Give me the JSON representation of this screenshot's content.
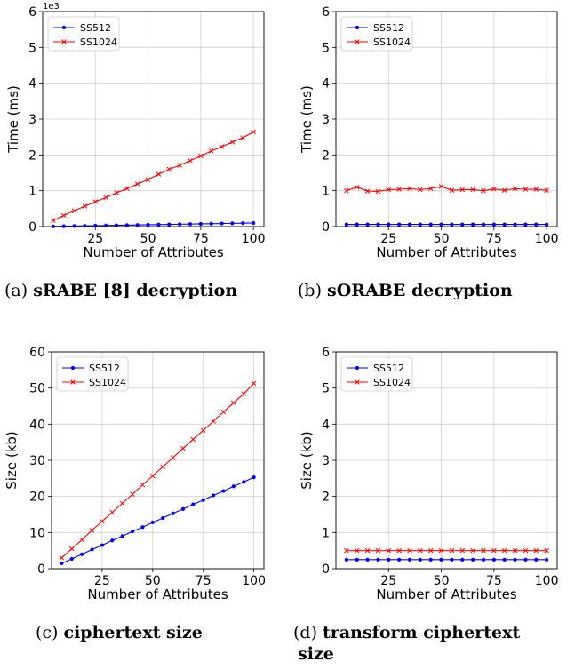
{
  "chart_data": [
    {
      "type": "line",
      "caption_prefix": "(a)",
      "caption_bold": "sRABE [8] decryption",
      "xlabel": "Number of Attributes",
      "ylabel": "Time (ms)",
      "y_exponent": "1e3",
      "xticks": [
        "25",
        "50",
        "75",
        "100"
      ],
      "yticks": [
        "0",
        "1",
        "2",
        "3",
        "4",
        "5",
        "6"
      ],
      "xlim": [
        0,
        105
      ],
      "ylim": [
        0,
        6
      ],
      "grid": true,
      "legend_placement": "top-left",
      "x": [
        5,
        10,
        15,
        20,
        25,
        30,
        35,
        40,
        45,
        50,
        55,
        60,
        65,
        70,
        75,
        80,
        85,
        90,
        95,
        100
      ],
      "series": [
        {
          "name": "SS512",
          "color": "#0000ff",
          "marker": "dot",
          "values": [
            0.005,
            0.01,
            0.015,
            0.02,
            0.025,
            0.03,
            0.035,
            0.04,
            0.045,
            0.05,
            0.055,
            0.06,
            0.065,
            0.07,
            0.075,
            0.08,
            0.085,
            0.09,
            0.095,
            0.1
          ]
        },
        {
          "name": "SS1024",
          "color": "#ff0000",
          "marker": "x",
          "values": [
            0.17,
            0.31,
            0.44,
            0.57,
            0.69,
            0.81,
            0.94,
            1.06,
            1.19,
            1.31,
            1.46,
            1.6,
            1.71,
            1.84,
            1.97,
            2.11,
            2.23,
            2.36,
            2.48,
            2.64
          ]
        }
      ]
    },
    {
      "type": "line",
      "caption_prefix": "(b)",
      "caption_bold": "sORABE decryption",
      "xlabel": "Number of Attributes",
      "ylabel": "Time (ms)",
      "y_exponent": "",
      "xticks": [
        "25",
        "50",
        "75",
        "100"
      ],
      "yticks": [
        "0",
        "1",
        "2",
        "3",
        "4",
        "5",
        "6"
      ],
      "xlim": [
        0,
        105
      ],
      "ylim": [
        0,
        6
      ],
      "grid": true,
      "legend_placement": "top-left",
      "x": [
        5,
        10,
        15,
        20,
        25,
        30,
        35,
        40,
        45,
        50,
        55,
        60,
        65,
        70,
        75,
        80,
        85,
        90,
        95,
        100
      ],
      "series": [
        {
          "name": "SS512",
          "color": "#0000ff",
          "marker": "dot",
          "values": [
            0.06,
            0.06,
            0.06,
            0.06,
            0.06,
            0.06,
            0.06,
            0.06,
            0.06,
            0.06,
            0.06,
            0.06,
            0.06,
            0.06,
            0.06,
            0.06,
            0.06,
            0.06,
            0.06,
            0.06
          ]
        },
        {
          "name": "SS1024",
          "color": "#ff0000",
          "marker": "x",
          "values": [
            1.0,
            1.1,
            0.99,
            0.98,
            1.03,
            1.04,
            1.06,
            1.03,
            1.06,
            1.12,
            1.01,
            1.03,
            1.03,
            1.0,
            1.05,
            1.01,
            1.06,
            1.04,
            1.04,
            1.01
          ]
        }
      ]
    },
    {
      "type": "line",
      "caption_prefix": "(c)",
      "caption_bold": "ciphertext size",
      "xlabel": "Number of Attributes",
      "ylabel": "Size (kb)",
      "y_exponent": "",
      "xticks": [
        "25",
        "50",
        "75",
        "100"
      ],
      "yticks": [
        "0",
        "10",
        "20",
        "30",
        "40",
        "50",
        "60"
      ],
      "xlim": [
        0,
        105
      ],
      "ylim": [
        0,
        60
      ],
      "grid": true,
      "legend_placement": "top-left",
      "x": [
        5,
        10,
        15,
        20,
        25,
        30,
        35,
        40,
        45,
        50,
        55,
        60,
        65,
        70,
        75,
        80,
        85,
        90,
        95,
        100
      ],
      "series": [
        {
          "name": "SS512",
          "color": "#0000ff",
          "marker": "dot",
          "values": [
            1.5,
            2.7,
            4.0,
            5.3,
            6.5,
            7.8,
            9.0,
            10.3,
            11.5,
            12.8,
            14.0,
            15.3,
            16.5,
            17.8,
            19.0,
            20.3,
            21.5,
            22.8,
            24.0,
            25.3
          ]
        },
        {
          "name": "SS1024",
          "color": "#ff0000",
          "marker": "x",
          "values": [
            3.0,
            5.5,
            8.0,
            10.6,
            13.1,
            15.6,
            18.1,
            20.6,
            23.2,
            25.7,
            28.2,
            30.7,
            33.3,
            35.8,
            38.3,
            40.8,
            43.4,
            45.9,
            48.4,
            51.3
          ]
        }
      ]
    },
    {
      "type": "line",
      "caption_prefix": "(d)",
      "caption_bold": "transform ciphertext",
      "caption_bold_line2": "size",
      "xlabel": "Number of Attributes",
      "ylabel": "Size (kb)",
      "y_exponent": "",
      "xticks": [
        "25",
        "50",
        "75",
        "100"
      ],
      "yticks": [
        "0",
        "1",
        "2",
        "3",
        "4",
        "5",
        "6"
      ],
      "xlim": [
        0,
        105
      ],
      "ylim": [
        0,
        6
      ],
      "grid": true,
      "legend_placement": "top-left",
      "x": [
        5,
        10,
        15,
        20,
        25,
        30,
        35,
        40,
        45,
        50,
        55,
        60,
        65,
        70,
        75,
        80,
        85,
        90,
        95,
        100
      ],
      "series": [
        {
          "name": "SS512",
          "color": "#0000ff",
          "marker": "dot",
          "values": [
            0.25,
            0.25,
            0.25,
            0.25,
            0.25,
            0.25,
            0.25,
            0.25,
            0.25,
            0.25,
            0.25,
            0.25,
            0.25,
            0.25,
            0.25,
            0.25,
            0.25,
            0.25,
            0.25,
            0.25
          ]
        },
        {
          "name": "SS1024",
          "color": "#ff0000",
          "marker": "x",
          "values": [
            0.5,
            0.5,
            0.5,
            0.5,
            0.5,
            0.5,
            0.5,
            0.5,
            0.5,
            0.5,
            0.5,
            0.5,
            0.5,
            0.5,
            0.5,
            0.5,
            0.5,
            0.5,
            0.5,
            0.5
          ]
        }
      ]
    }
  ]
}
